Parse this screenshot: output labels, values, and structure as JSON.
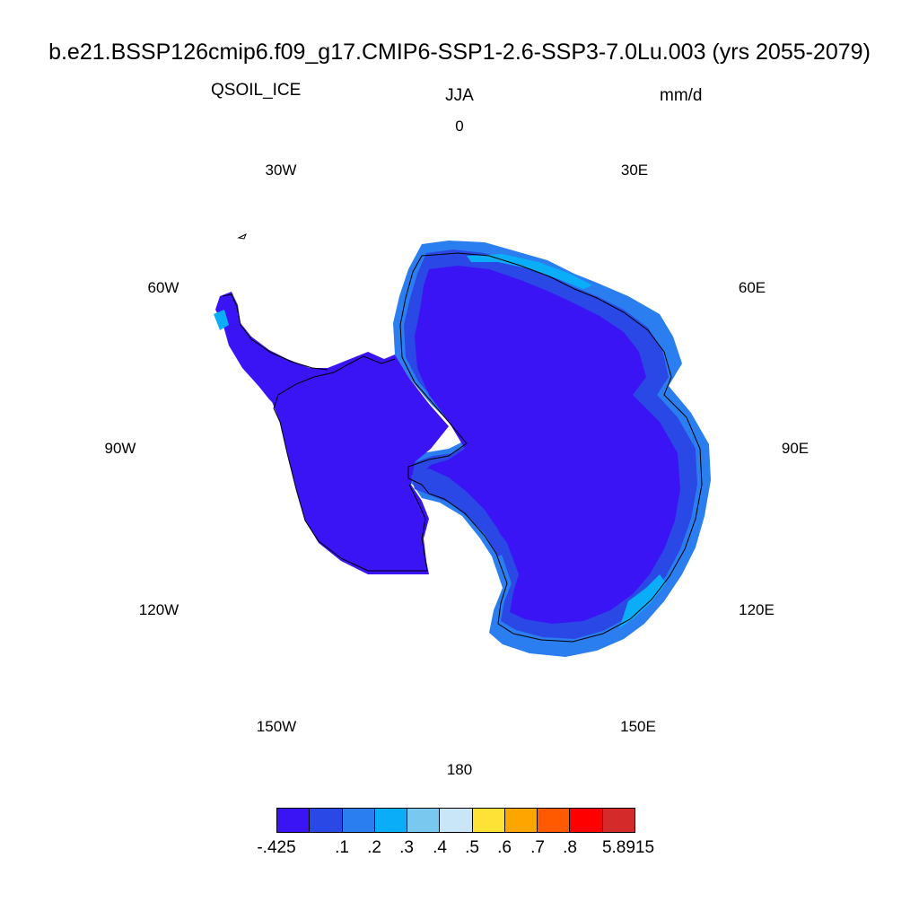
{
  "title": "b.e21.BSSP126cmip6.f09_g17.CMIP6-SSP1-2.6-SSP3-7.0Lu.003 (yrs 2055-2079)",
  "variable": "QSOIL_ICE",
  "season": "JJA",
  "units": "mm/d",
  "longitude_labels": [
    "0",
    "30E",
    "60E",
    "90E",
    "120E",
    "150E",
    "180",
    "150W",
    "120W",
    "90W",
    "60W",
    "30W"
  ],
  "colorbar": {
    "colors": [
      "#3a14f4",
      "#2a48e6",
      "#2a7ef0",
      "#0aaef8",
      "#78c8f0",
      "#c8e6f8",
      "#ffe235",
      "#ffa500",
      "#ff5a00",
      "#ff0000",
      "#d42a2a"
    ],
    "labels": [
      "-.425",
      ".1",
      ".2",
      ".3",
      ".4",
      ".5",
      ".6",
      ".7",
      ".8",
      "5.8915"
    ]
  },
  "map_colors": {
    "base": "#3a14f4",
    "coast_band": "#2a48e6",
    "light_band": "#2a7ef0",
    "ice_edge": "#0aaef8"
  }
}
